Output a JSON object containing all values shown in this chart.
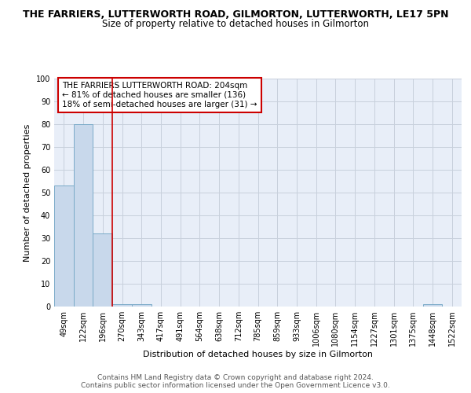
{
  "title": "THE FARRIERS, LUTTERWORTH ROAD, GILMORTON, LUTTERWORTH, LE17 5PN",
  "subtitle": "Size of property relative to detached houses in Gilmorton",
  "xlabel": "Distribution of detached houses by size in Gilmorton",
  "ylabel": "Number of detached properties",
  "categories": [
    "49sqm",
    "122sqm",
    "196sqm",
    "270sqm",
    "343sqm",
    "417sqm",
    "491sqm",
    "564sqm",
    "638sqm",
    "712sqm",
    "785sqm",
    "859sqm",
    "933sqm",
    "1006sqm",
    "1080sqm",
    "1154sqm",
    "1227sqm",
    "1301sqm",
    "1375sqm",
    "1448sqm",
    "1522sqm"
  ],
  "values": [
    53,
    80,
    32,
    1,
    1,
    0,
    0,
    0,
    0,
    0,
    0,
    0,
    0,
    0,
    0,
    0,
    0,
    0,
    0,
    1,
    0
  ],
  "bar_color": "#c8d8eb",
  "bar_edge_color": "#7aaac8",
  "bar_edge_width": 0.7,
  "red_line_x": 2.5,
  "red_line_color": "#cc0000",
  "ylim": [
    0,
    100
  ],
  "yticks": [
    0,
    10,
    20,
    30,
    40,
    50,
    60,
    70,
    80,
    90,
    100
  ],
  "grid_color": "#c8d0dc",
  "background_color": "#e8eef8",
  "annotation_text": "THE FARRIERS LUTTERWORTH ROAD: 204sqm\n← 81% of detached houses are smaller (136)\n18% of semi-detached houses are larger (31) →",
  "annotation_box_color": "#ffffff",
  "annotation_border_color": "#cc0000",
  "footer_line1": "Contains HM Land Registry data © Crown copyright and database right 2024.",
  "footer_line2": "Contains public sector information licensed under the Open Government Licence v3.0.",
  "title_fontsize": 9.0,
  "subtitle_fontsize": 8.5,
  "xlabel_fontsize": 8.0,
  "ylabel_fontsize": 8.0,
  "tick_fontsize": 7.0,
  "annotation_fontsize": 7.5,
  "footer_fontsize": 6.5
}
